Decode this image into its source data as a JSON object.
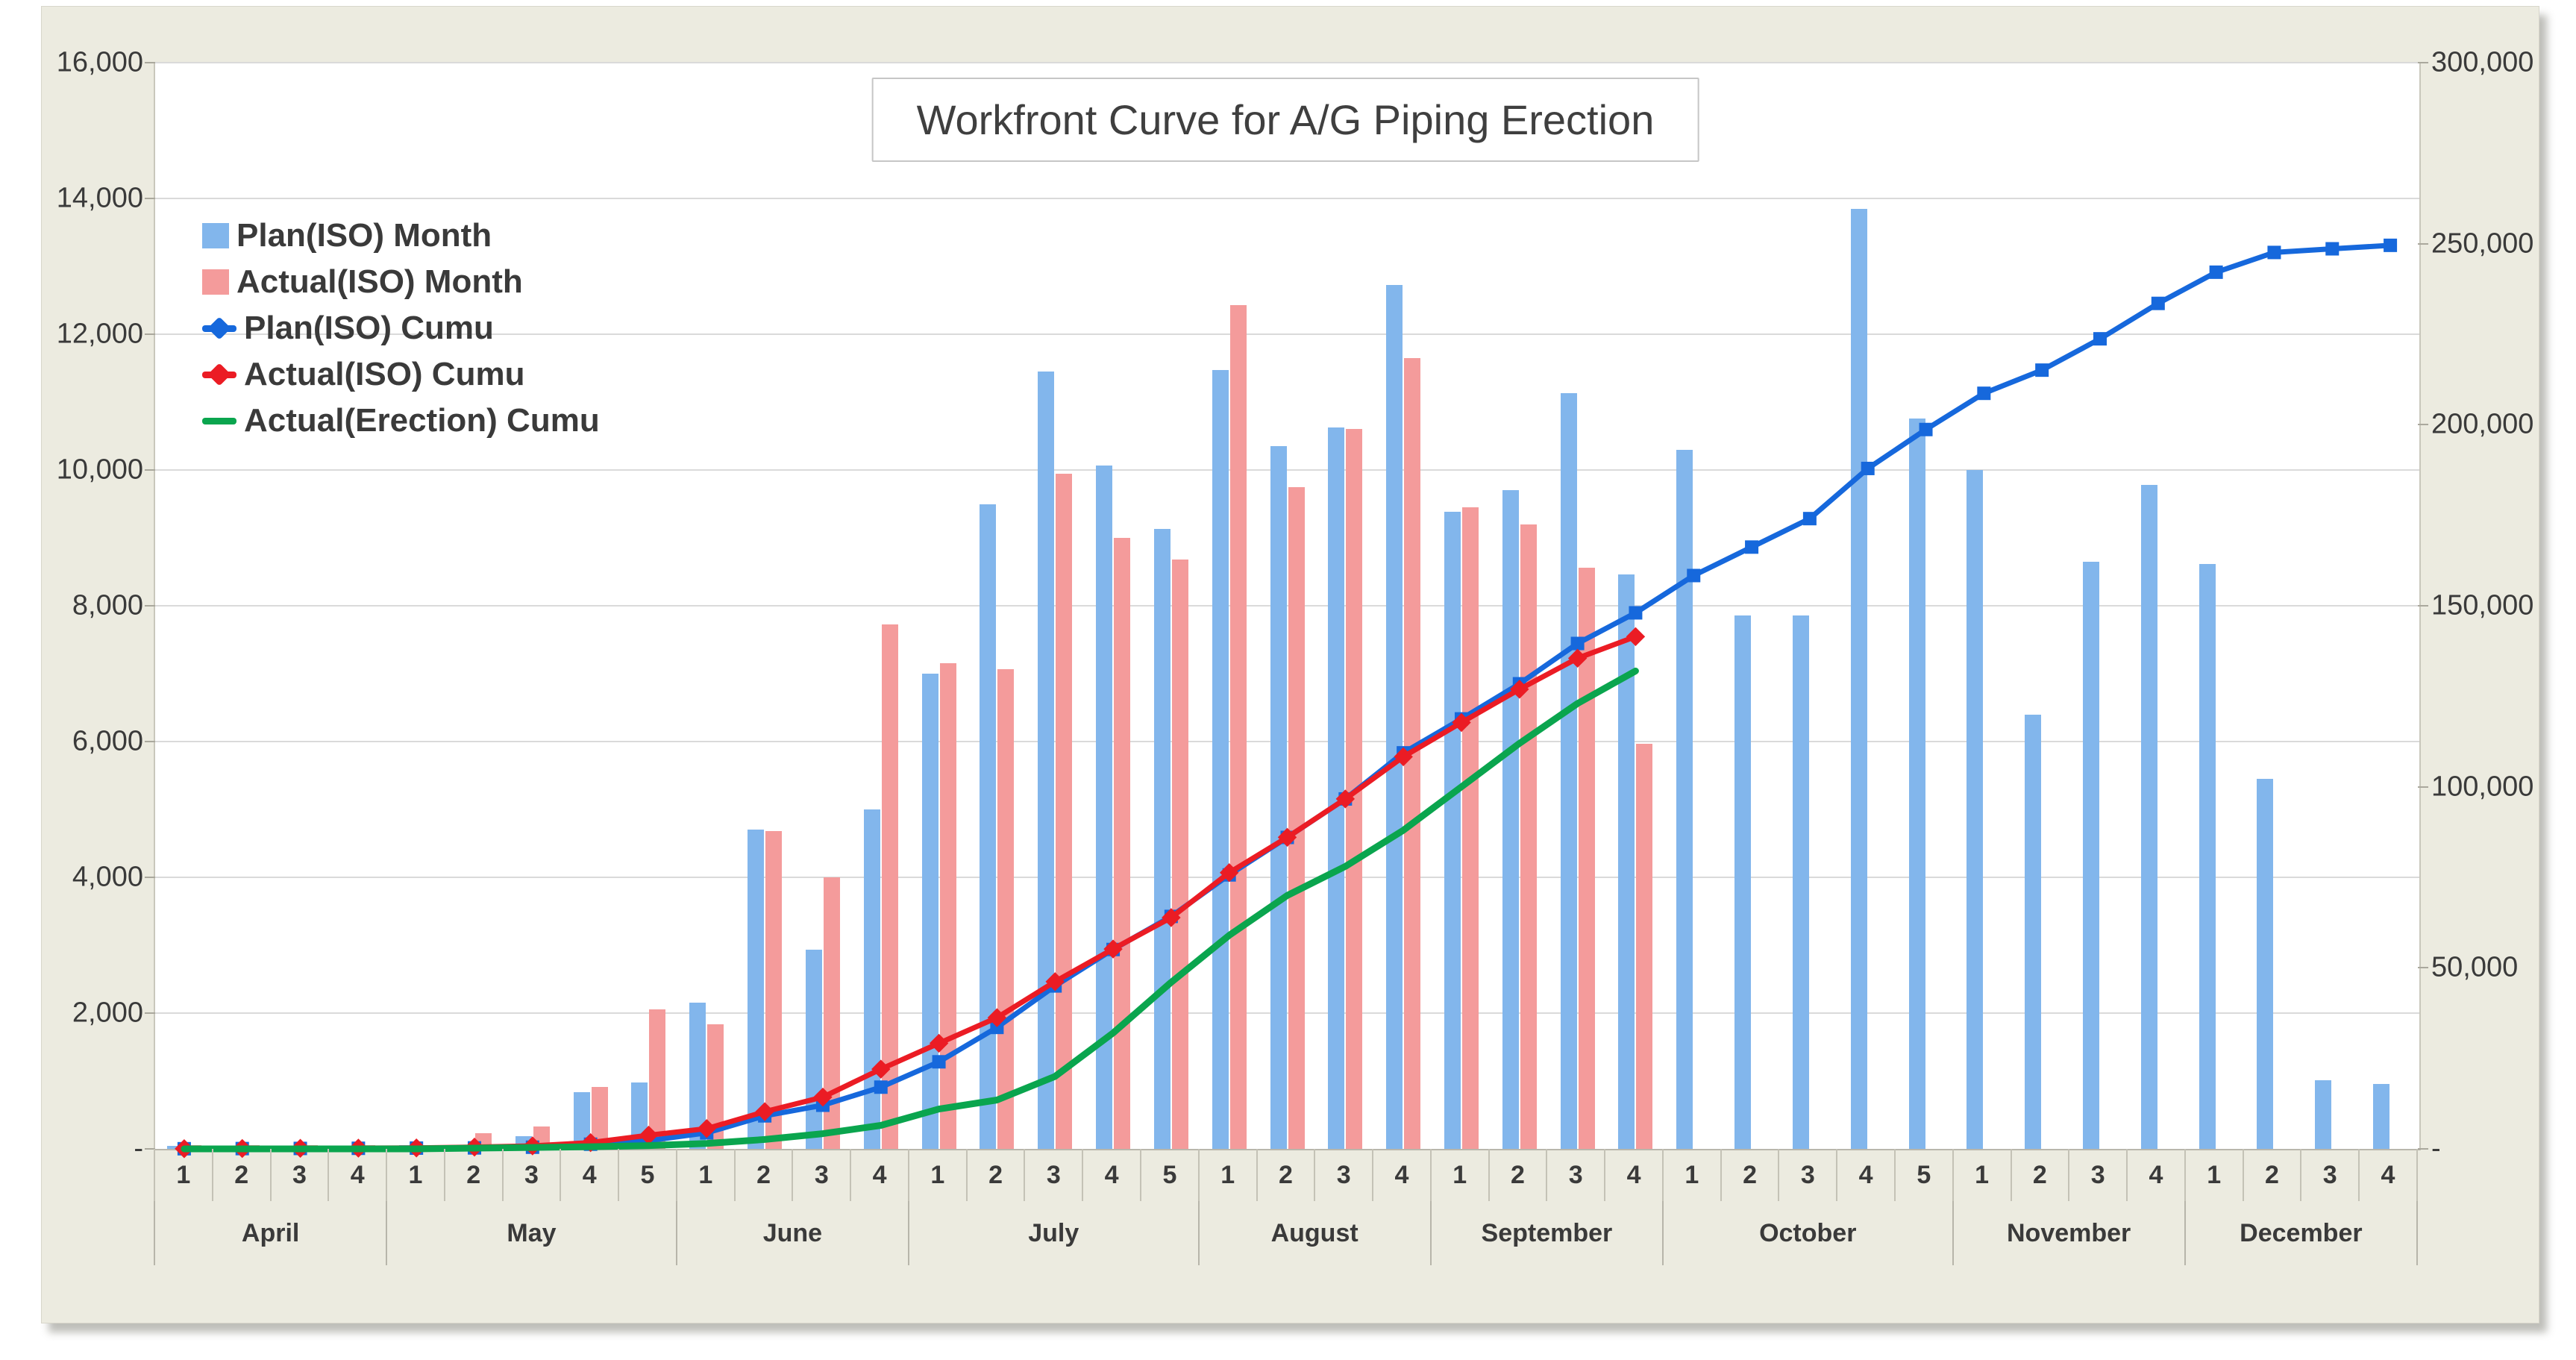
{
  "title": "Workfront Curve for A/G Piping Erection",
  "legend": {
    "items": [
      {
        "label": "Plan(ISO) Month",
        "swatch": "bar-blue-square"
      },
      {
        "label": "Actual(ISO) Month",
        "swatch": "bar-red-square"
      },
      {
        "label": "Plan(ISO) Cumu",
        "swatch": "blue-line-marker"
      },
      {
        "label": "Actual(ISO) Cumu",
        "swatch": "red-line-marker"
      },
      {
        "label": "Actual(Erection) Cumu",
        "swatch": "green-line"
      }
    ]
  },
  "axes": {
    "left": {
      "max": 16000,
      "tick_labels": [
        "16,000",
        "14,000",
        "12,000",
        "10,000",
        "8,000",
        "6,000",
        "4,000",
        "2,000",
        "-"
      ]
    },
    "right": {
      "max": 300000,
      "tick_labels": [
        "300,000",
        "250,000",
        "200,000",
        "150,000",
        "100,000",
        "50,000",
        "-"
      ]
    }
  },
  "colors": {
    "background": "#ECEBE0",
    "plot_background": "#FFFFFF",
    "gridline": "#DADADA",
    "plan_bar": "#82B6EC",
    "actual_bar": "#F49B9B",
    "plan_line": "#1668DC",
    "actual_line": "#EB1C24",
    "erection_line": "#0AA54E"
  },
  "chart_data": {
    "type": "bar",
    "subtype": "combo-bar-line",
    "title": "Workfront Curve for A/G Piping Erection",
    "grid": true,
    "legend_position": "top-left-inside",
    "left_max": 16000,
    "right_max": 300000,
    "months": [
      {
        "name": "April",
        "weeks": [
          "1",
          "2",
          "3",
          "4"
        ]
      },
      {
        "name": "May",
        "weeks": [
          "1",
          "2",
          "3",
          "4",
          "5"
        ]
      },
      {
        "name": "June",
        "weeks": [
          "1",
          "2",
          "3",
          "4"
        ]
      },
      {
        "name": "July",
        "weeks": [
          "1",
          "2",
          "3",
          "4",
          "5"
        ]
      },
      {
        "name": "August",
        "weeks": [
          "1",
          "2",
          "3",
          "4"
        ]
      },
      {
        "name": "September",
        "weeks": [
          "1",
          "2",
          "3",
          "4"
        ]
      },
      {
        "name": "October",
        "weeks": [
          "1",
          "2",
          "3",
          "4",
          "5"
        ]
      },
      {
        "name": "November",
        "weeks": [
          "1",
          "2",
          "3",
          "4"
        ]
      },
      {
        "name": "December",
        "weeks": [
          "1",
          "2",
          "3",
          "4"
        ]
      }
    ],
    "series": [
      {
        "name": "Plan(ISO) Month",
        "type": "bar",
        "axis": "left",
        "color": "#82B6EC",
        "values": [
          40,
          40,
          40,
          40,
          50,
          60,
          190,
          830,
          980,
          2150,
          4700,
          2930,
          5000,
          7000,
          9500,
          11450,
          10070,
          9130,
          11470,
          10350,
          10630,
          12730,
          9380,
          9700,
          11130,
          8460,
          10300,
          7860,
          7860,
          13850,
          10760,
          10000,
          6400,
          8650,
          9780,
          8620,
          5450,
          1010,
          960
        ]
      },
      {
        "name": "Actual(ISO) Month",
        "type": "bar",
        "axis": "left",
        "color": "#F49B9B",
        "values": [
          50,
          50,
          50,
          50,
          60,
          230,
          330,
          910,
          2050,
          1830,
          4680,
          4000,
          7730,
          7150,
          7070,
          9950,
          9000,
          8680,
          12430,
          9750,
          10600,
          11650,
          9450,
          9200,
          8560,
          5970,
          null,
          null,
          null,
          null,
          null,
          null,
          null,
          null,
          null,
          null,
          null,
          null,
          null
        ]
      },
      {
        "name": "Plan(ISO) Cumu",
        "type": "line",
        "axis": "right",
        "color": "#1668DC",
        "marker": "square",
        "values": [
          40,
          80,
          120,
          160,
          210,
          270,
          460,
          1290,
          2270,
          4420,
          9120,
          12050,
          17050,
          24050,
          33550,
          45000,
          55070,
          64200,
          75670,
          86020,
          96650,
          109380,
          118760,
          128460,
          139590,
          148050,
          158350,
          166210,
          174070,
          187920,
          198680,
          208680,
          215080,
          223730,
          233510,
          242130,
          247580,
          248590,
          249550
        ]
      },
      {
        "name": "Actual(ISO) Cumu",
        "type": "line",
        "axis": "right",
        "color": "#EB1C24",
        "marker": "diamond",
        "values": [
          50,
          100,
          150,
          200,
          260,
          490,
          820,
          1730,
          3780,
          5610,
          10290,
          14290,
          22020,
          29170,
          36240,
          46190,
          55190,
          63870,
          76300,
          86050,
          96650,
          108300,
          117750,
          126950,
          135510,
          141480,
          null,
          null,
          null,
          null,
          null,
          null,
          null,
          null,
          null,
          null,
          null,
          null,
          null
        ]
      },
      {
        "name": "Actual(Erection) Cumu",
        "type": "line",
        "axis": "right",
        "color": "#0AA54E",
        "marker": null,
        "values": [
          0,
          0,
          0,
          0,
          0,
          200,
          400,
          600,
          900,
          1500,
          2600,
          4200,
          6500,
          11000,
          13500,
          20000,
          32000,
          46000,
          59000,
          70000,
          78000,
          88000,
          100000,
          112000,
          123000,
          132000,
          null,
          null,
          null,
          null,
          null,
          null,
          null,
          null,
          null,
          null,
          null,
          null,
          null
        ]
      }
    ]
  }
}
